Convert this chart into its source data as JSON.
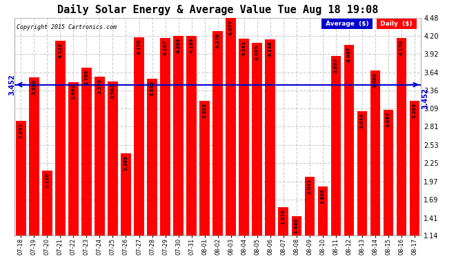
{
  "title": "Daily Solar Energy & Average Value Tue Aug 18 19:08",
  "copyright": "Copyright 2015 Cartronics.com",
  "categories": [
    "07-18",
    "07-19",
    "07-20",
    "07-21",
    "07-22",
    "07-23",
    "07-24",
    "07-25",
    "07-26",
    "07-27",
    "07-28",
    "07-29",
    "07-30",
    "07-31",
    "08-01",
    "08-02",
    "08-03",
    "08-04",
    "08-05",
    "08-06",
    "08-07",
    "08-08",
    "08-09",
    "08-10",
    "08-11",
    "08-12",
    "08-13",
    "08-14",
    "08-15",
    "08-16",
    "08-17"
  ],
  "values": [
    2.895,
    3.56,
    2.136,
    4.122,
    3.493,
    3.709,
    3.57,
    3.504,
    2.399,
    4.176,
    3.545,
    4.167,
    4.203,
    4.199,
    3.203,
    4.278,
    4.477,
    4.161,
    4.095,
    4.148,
    1.579,
    1.44,
    2.043,
    1.892,
    3.897,
    4.067,
    3.044,
    3.669,
    3.067,
    4.17,
    3.203
  ],
  "average": 3.452,
  "bar_color": "#ff0000",
  "average_line_color": "#0000cc",
  "ylim_min": 1.14,
  "ylim_max": 4.48,
  "yticks": [
    1.14,
    1.41,
    1.69,
    1.97,
    2.25,
    2.53,
    2.81,
    3.09,
    3.36,
    3.64,
    3.92,
    4.2,
    4.48
  ],
  "bg_color": "#ffffff",
  "plot_bg_color": "#ffffff",
  "grid_color": "#cccccc",
  "bar_value_color": "black",
  "title_fontsize": 11,
  "legend_avg_bg": "#0000cc",
  "legend_daily_bg": "#ff0000",
  "legend_text_color": "white"
}
